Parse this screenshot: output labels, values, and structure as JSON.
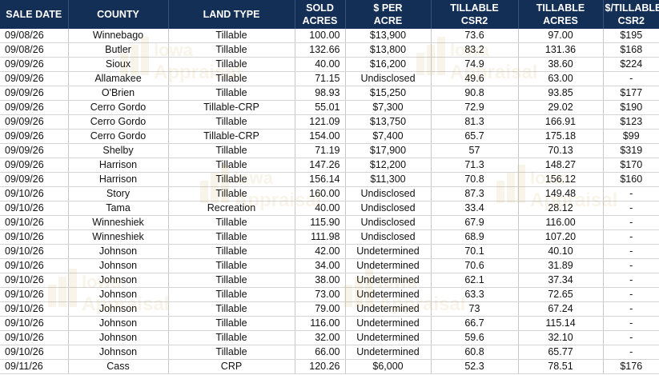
{
  "headers": [
    "SALE DATE",
    "COUNTY",
    "LAND TYPE",
    "SOLD\nACRES",
    "$ PER\nACRE",
    "TILLABLE\nCSR2",
    "TILLABLE\nACRES",
    "$/TILLABLE\nCSR2"
  ],
  "rows": [
    [
      "09/08/26",
      "Winnebago",
      "Tillable",
      "100.00",
      "$13,900",
      "73.6",
      "97.00",
      "$195"
    ],
    [
      "09/08/26",
      "Butler",
      "Tillable",
      "132.66",
      "$13,800",
      "83.2",
      "131.36",
      "$168"
    ],
    [
      "09/09/26",
      "Sioux",
      "Tillable",
      "40.00",
      "$16,200",
      "74.9",
      "38.60",
      "$224"
    ],
    [
      "09/09/26",
      "Allamakee",
      "Tillable",
      "71.15",
      "Undisclosed",
      "49.6",
      "63.00",
      "-"
    ],
    [
      "09/09/26",
      "O'Brien",
      "Tillable",
      "98.93",
      "$15,250",
      "90.8",
      "93.85",
      "$177"
    ],
    [
      "09/09/26",
      "Cerro Gordo",
      "Tillable-CRP",
      "55.01",
      "$7,300",
      "72.9",
      "29.02",
      "$190"
    ],
    [
      "09/09/26",
      "Cerro Gordo",
      "Tillable",
      "121.09",
      "$13,750",
      "81.3",
      "166.91",
      "$123"
    ],
    [
      "09/09/26",
      "Cerro Gordo",
      "Tillable-CRP",
      "154.00",
      "$7,400",
      "65.7",
      "175.18",
      "$99"
    ],
    [
      "09/09/26",
      "Shelby",
      "Tillable",
      "71.19",
      "$17,900",
      "57",
      "70.13",
      "$319"
    ],
    [
      "09/09/26",
      "Harrison",
      "Tillable",
      "147.26",
      "$12,200",
      "71.3",
      "148.27",
      "$170"
    ],
    [
      "09/09/26",
      "Harrison",
      "Tillable",
      "156.14",
      "$11,300",
      "70.8",
      "156.12",
      "$160"
    ],
    [
      "09/10/26",
      "Story",
      "Tillable",
      "160.00",
      "Undisclosed",
      "87.3",
      "149.48",
      "-"
    ],
    [
      "09/10/26",
      "Tama",
      "Recreation",
      "40.00",
      "Undisclosed",
      "33.4",
      "28.12",
      "-"
    ],
    [
      "09/10/26",
      "Winneshiek",
      "Tillable",
      "115.90",
      "Undisclosed",
      "67.9",
      "116.00",
      "-"
    ],
    [
      "09/10/26",
      "Winneshiek",
      "Tillable",
      "111.98",
      "Undisclosed",
      "68.9",
      "107.20",
      "-"
    ],
    [
      "09/10/26",
      "Johnson",
      "Tillable",
      "42.00",
      "Undetermined",
      "70.1",
      "40.10",
      "-"
    ],
    [
      "09/10/26",
      "Johnson",
      "Tillable",
      "34.00",
      "Undetermined",
      "70.6",
      "31.89",
      "-"
    ],
    [
      "09/10/26",
      "Johnson",
      "Tillable",
      "38.00",
      "Undetermined",
      "62.1",
      "37.34",
      "-"
    ],
    [
      "09/10/26",
      "Johnson",
      "Tillable",
      "73.00",
      "Undetermined",
      "63.3",
      "72.65",
      "-"
    ],
    [
      "09/10/26",
      "Johnson",
      "Tillable",
      "79.00",
      "Undetermined",
      "73",
      "67.24",
      "-"
    ],
    [
      "09/10/26",
      "Johnson",
      "Tillable",
      "116.00",
      "Undetermined",
      "66.7",
      "115.14",
      "-"
    ],
    [
      "09/10/26",
      "Johnson",
      "Tillable",
      "32.00",
      "Undetermined",
      "59.6",
      "32.10",
      "-"
    ],
    [
      "09/10/26",
      "Johnson",
      "Tillable",
      "66.00",
      "Undetermined",
      "60.8",
      "65.77",
      "-"
    ],
    [
      "09/11/26",
      "Cass",
      "CRP",
      "120.26",
      "$6,000",
      "52.3",
      "78.51",
      "$176"
    ]
  ],
  "watermark": {
    "text_a": "Iowa",
    "text_b": "Appraisal"
  },
  "colors": {
    "header_bg": "#142f56",
    "header_text": "#ffffff",
    "watermark": "#c49a3a"
  }
}
